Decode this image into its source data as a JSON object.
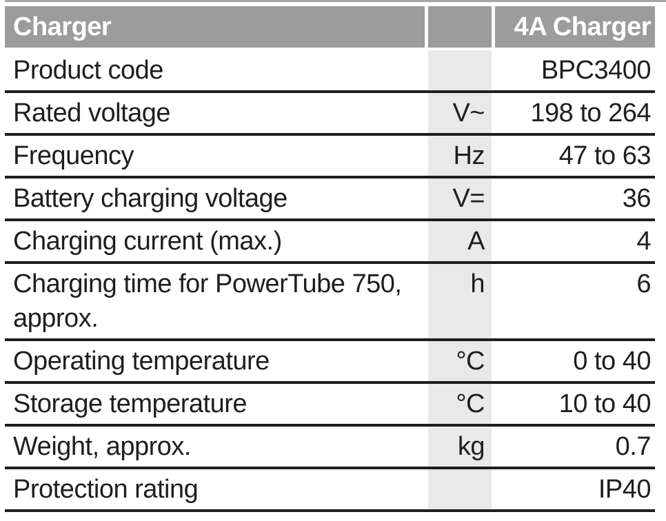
{
  "colors": {
    "header_bg": "#9c9c9c",
    "header_text": "#ffffff",
    "unit_column_bg": "#e9e9e9",
    "row_separator": "#1d1d1d",
    "body_text": "#1e1e1e",
    "top_rule": "#a6a6a6"
  },
  "table": {
    "header": {
      "label": "Charger",
      "unit": "",
      "value": "4A Charger"
    },
    "rows": [
      {
        "label": "Product code",
        "unit": "",
        "value": "BPC3400"
      },
      {
        "label": "Rated voltage",
        "unit": "V~",
        "value": "198 to 264"
      },
      {
        "label": "Frequency",
        "unit": "Hz",
        "value": "47 to 63"
      },
      {
        "label": "Battery charging voltage",
        "unit": "V=",
        "value": "36"
      },
      {
        "label": "Charging current (max.)",
        "unit": "A",
        "value": "4"
      },
      {
        "label": "Charging time for PowerTube 750, approx.",
        "unit": "h",
        "value": "6"
      },
      {
        "label": "Operating temperature",
        "unit": "°C",
        "value": "0 to 40"
      },
      {
        "label": "Storage temperature",
        "unit": "°C",
        "value": "10 to 40"
      },
      {
        "label": "Weight, approx.",
        "unit": "kg",
        "value": "0.7"
      },
      {
        "label": "Protection rating",
        "unit": "",
        "value": "IP40"
      }
    ]
  }
}
